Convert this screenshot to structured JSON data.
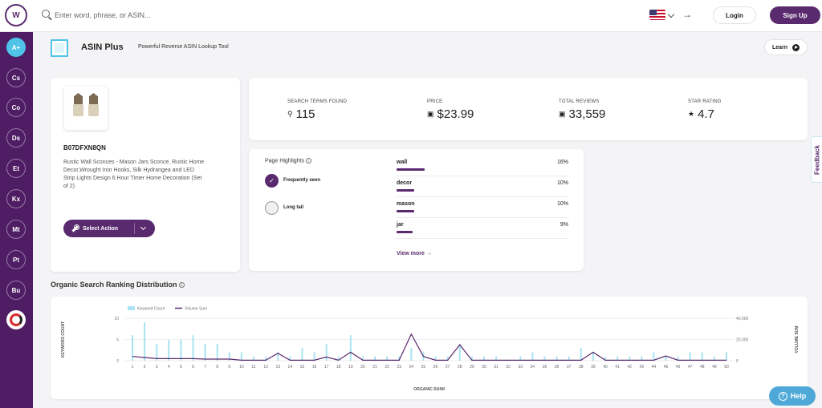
{
  "header": {
    "logo_text": "W",
    "search_placeholder": "Enter word, phrase, or ASIN...",
    "login_label": "Login",
    "signup_label": "Sign Up",
    "arrow_glyph": "→"
  },
  "sidebar": {
    "items": [
      {
        "label": "A+",
        "active": true
      },
      {
        "label": "Cs"
      },
      {
        "label": "Co"
      },
      {
        "label": "Ds"
      },
      {
        "label": "Et"
      },
      {
        "label": "Kx"
      },
      {
        "label": "Mt"
      },
      {
        "label": "Pt"
      },
      {
        "label": "Bu"
      }
    ]
  },
  "page": {
    "title": "ASIN Plus",
    "subtitle": "Powerful Reverse ASIN Lookup Tool",
    "learn_label": "Learn"
  },
  "product": {
    "asin": "B07DFXN8QN",
    "title": "Rustic Wall Sconces - Mason Jars Sconce, Rustic Home Decor,Wrought Iron Hooks, Silk Hydrangea and LED Strip Lights Design 6 Hour Timer Home Decoration (Set of 2)",
    "select_action_label": "Select Action"
  },
  "stats": [
    {
      "label": "SEARCH TERMS FOUND",
      "value": "115",
      "icon": "search-icon",
      "glyph": "⚲"
    },
    {
      "label": "PRICE",
      "value": "$23.99",
      "icon": "price-tag-icon",
      "glyph": "▣"
    },
    {
      "label": "TOTAL REVIEWS",
      "value": "33,559",
      "icon": "reviews-icon",
      "glyph": "▣"
    },
    {
      "label": "STAR RATING",
      "value": "4.7",
      "icon": "star-icon",
      "glyph": "★"
    }
  ],
  "highlights": {
    "title": "Page Highlights",
    "options": [
      {
        "label": "Frequently seen",
        "selected": true
      },
      {
        "label": "Long tail",
        "selected": false
      }
    ],
    "keywords": [
      {
        "name": "wall",
        "pct": "16%",
        "share": 0.16
      },
      {
        "name": "decor",
        "pct": "10%",
        "share": 0.1
      },
      {
        "name": "mason",
        "pct": "10%",
        "share": 0.1
      },
      {
        "name": "jar",
        "pct": "9%",
        "share": 0.09
      }
    ],
    "view_more_label": "View more →"
  },
  "ranking": {
    "title": "Organic Search Ranking Distribution"
  },
  "chart_data": {
    "type": "bar",
    "title": "",
    "xlabel": "ORGANIC RANK",
    "ylabel": "KEYWORD COUNT",
    "y2label": "VOLUME SUM",
    "categories": [
      "1",
      "2",
      "3",
      "4",
      "5",
      "6",
      "7",
      "8",
      "9",
      "10",
      "11",
      "12",
      "13",
      "14",
      "15",
      "16",
      "17",
      "18",
      "19",
      "20",
      "21",
      "22",
      "23",
      "24",
      "25",
      "26",
      "27",
      "28",
      "29",
      "30",
      "31",
      "32",
      "33",
      "34",
      "35",
      "36",
      "37",
      "38",
      "39",
      "40",
      "41",
      "42",
      "43",
      "44",
      "45",
      "46",
      "47",
      "48",
      "49",
      "50"
    ],
    "ylim": [
      0,
      10
    ],
    "y2lim": [
      0,
      40000
    ],
    "yticks": [
      0,
      5,
      10
    ],
    "y2ticks": [
      "0",
      "20,000",
      "40,000"
    ],
    "legend_position": "top-left",
    "colors": {
      "bars": "#a8e4f2",
      "line": "#5a2a6e"
    },
    "series": [
      {
        "name": "Keyword Count",
        "type": "bar",
        "values": [
          6,
          9,
          4,
          5,
          5,
          6,
          4,
          4,
          2,
          2,
          1,
          1,
          2,
          1,
          3,
          2,
          4,
          1,
          6,
          1,
          1,
          1,
          1,
          3,
          2,
          1,
          1,
          4,
          1,
          1,
          1,
          0,
          1,
          2,
          1,
          1,
          1,
          3,
          2,
          1,
          1,
          1,
          1,
          2,
          1,
          1,
          2,
          2,
          1,
          2
        ]
      },
      {
        "name": "Volume Sum",
        "type": "line",
        "values": [
          4000,
          3000,
          2000,
          2000,
          2000,
          2000,
          1500,
          1500,
          1500,
          500,
          500,
          500,
          7000,
          500,
          500,
          500,
          3500,
          500,
          8000,
          500,
          500,
          500,
          500,
          25000,
          4000,
          500,
          500,
          15000,
          500,
          500,
          500,
          500,
          500,
          500,
          500,
          500,
          500,
          500,
          8000,
          500,
          500,
          500,
          500,
          500,
          4500,
          500,
          500,
          500,
          500,
          500
        ]
      }
    ]
  },
  "feedback_label": "Feedback",
  "help_label": "Help"
}
